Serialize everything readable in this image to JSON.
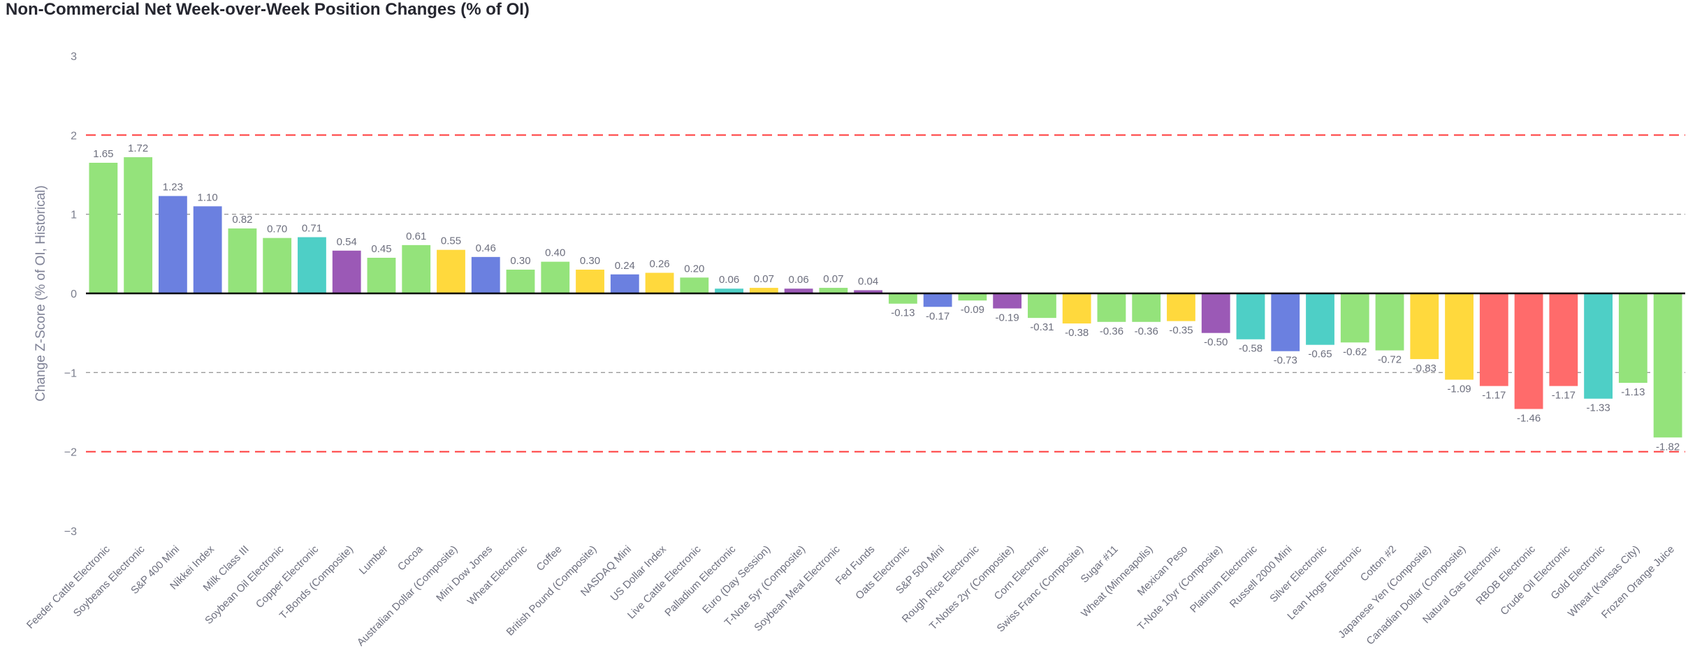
{
  "chart_data": {
    "type": "bar",
    "title": "Non-Commercial Net Week-over-Week Position Changes (% of OI)",
    "xlabel": "",
    "ylabel": "Change Z-Score (% of OI, Historical)",
    "ylim": [
      -3,
      3
    ],
    "yticks": [
      3,
      2,
      1,
      0,
      -1,
      -2,
      -3
    ],
    "reference_lines": [
      {
        "value": 2,
        "style": "dashed",
        "color": "#ff3b3b"
      },
      {
        "value": -2,
        "style": "dashed",
        "color": "#ff3b3b"
      },
      {
        "value": 1,
        "style": "dashed",
        "color": "#9a9a9a"
      },
      {
        "value": -1,
        "style": "dashed",
        "color": "#9a9a9a"
      },
      {
        "value": 0,
        "style": "solid",
        "color": "#000000"
      }
    ],
    "colors": {
      "agriculture": "#94e37b",
      "equity_index": "#6b80e0",
      "metals": "#4ecfc6",
      "interest_rates": "#9b59b6",
      "currencies": "#ffd93d",
      "energy": "#ff6b6b"
    },
    "bars": [
      {
        "label": "Feeder Cattle Electronic",
        "value": 1.65,
        "text": "1.65",
        "group": "agriculture"
      },
      {
        "label": "Soybeans Electronic",
        "value": 1.72,
        "text": "1.72",
        "group": "agriculture"
      },
      {
        "label": "S&P 400 Mini",
        "value": 1.23,
        "text": "1.23",
        "group": "equity_index"
      },
      {
        "label": "Nikkei Index",
        "value": 1.1,
        "text": "1.10",
        "group": "equity_index"
      },
      {
        "label": "Milk Class III",
        "value": 0.82,
        "text": "0.82",
        "group": "agriculture"
      },
      {
        "label": "Soybean Oil Electronic",
        "value": 0.7,
        "text": "0.70",
        "group": "agriculture"
      },
      {
        "label": "Copper Electronic",
        "value": 0.71,
        "text": "0.71",
        "group": "metals"
      },
      {
        "label": "T-Bonds (Composite)",
        "value": 0.54,
        "text": "0.54",
        "group": "interest_rates"
      },
      {
        "label": "Lumber",
        "value": 0.45,
        "text": "0.45",
        "group": "agriculture"
      },
      {
        "label": "Cocoa",
        "value": 0.61,
        "text": "0.61",
        "group": "agriculture"
      },
      {
        "label": "Australian Dollar (Composite)",
        "value": 0.55,
        "text": "0.55",
        "group": "currencies"
      },
      {
        "label": "Mini Dow Jones",
        "value": 0.46,
        "text": "0.46",
        "group": "equity_index"
      },
      {
        "label": "Wheat Electronic",
        "value": 0.3,
        "text": "0.30",
        "group": "agriculture"
      },
      {
        "label": "Coffee",
        "value": 0.4,
        "text": "0.40",
        "group": "agriculture"
      },
      {
        "label": "British Pound (Composite)",
        "value": 0.3,
        "text": "0.30",
        "group": "currencies"
      },
      {
        "label": "NASDAQ Mini",
        "value": 0.24,
        "text": "0.24",
        "group": "equity_index"
      },
      {
        "label": "US Dollar Index",
        "value": 0.26,
        "text": "0.26",
        "group": "currencies"
      },
      {
        "label": "Live Cattle Electronic",
        "value": 0.2,
        "text": "0.20",
        "group": "agriculture"
      },
      {
        "label": "Palladium Electronic",
        "value": 0.06,
        "text": "0.06",
        "group": "metals"
      },
      {
        "label": "Euro (Day Session)",
        "value": 0.07,
        "text": "0.07",
        "group": "currencies"
      },
      {
        "label": "T-Note 5yr (Composite)",
        "value": 0.06,
        "text": "0.06",
        "group": "interest_rates"
      },
      {
        "label": "Soybean Meal Electronic",
        "value": 0.07,
        "text": "0.07",
        "group": "agriculture"
      },
      {
        "label": "Fed Funds",
        "value": 0.04,
        "text": "0.04",
        "group": "interest_rates"
      },
      {
        "label": "Oats Electronic",
        "value": -0.13,
        "text": "-0.13",
        "group": "agriculture"
      },
      {
        "label": "S&P 500 Mini",
        "value": -0.17,
        "text": "-0.17",
        "group": "equity_index"
      },
      {
        "label": "Rough Rice Electronic",
        "value": -0.09,
        "text": "-0.09",
        "group": "agriculture"
      },
      {
        "label": "T-Notes 2yr (Composite)",
        "value": -0.19,
        "text": "-0.19",
        "group": "interest_rates"
      },
      {
        "label": "Corn Electronic",
        "value": -0.31,
        "text": "-0.31",
        "group": "agriculture"
      },
      {
        "label": "Swiss Franc (Composite)",
        "value": -0.38,
        "text": "-0.38",
        "group": "currencies"
      },
      {
        "label": "Sugar #11",
        "value": -0.36,
        "text": "-0.36",
        "group": "agriculture"
      },
      {
        "label": "Wheat (Minneapolis)",
        "value": -0.36,
        "text": "-0.36",
        "group": "agriculture"
      },
      {
        "label": "Mexican Peso",
        "value": -0.35,
        "text": "-0.35",
        "group": "currencies"
      },
      {
        "label": "T-Note 10yr (Composite)",
        "value": -0.5,
        "text": "-0.50",
        "group": "interest_rates"
      },
      {
        "label": "Platinum Electronic",
        "value": -0.58,
        "text": "-0.58",
        "group": "metals"
      },
      {
        "label": "Russell 2000 Mini",
        "value": -0.73,
        "text": "-0.73",
        "group": "equity_index"
      },
      {
        "label": "Silver Electronic",
        "value": -0.65,
        "text": "-0.65",
        "group": "metals"
      },
      {
        "label": "Lean Hogs Electronic",
        "value": -0.62,
        "text": "-0.62",
        "group": "agriculture"
      },
      {
        "label": "Cotton #2",
        "value": -0.72,
        "text": "-0.72",
        "group": "agriculture"
      },
      {
        "label": "Japanese Yen (Composite)",
        "value": -0.83,
        "text": "-0.83",
        "group": "currencies"
      },
      {
        "label": "Canadian Dollar (Composite)",
        "value": -1.09,
        "text": "-1.09",
        "group": "currencies"
      },
      {
        "label": "Natural Gas Electronic",
        "value": -1.17,
        "text": "-1.17",
        "group": "energy"
      },
      {
        "label": "RBOB Electronic",
        "value": -1.46,
        "text": "-1.46",
        "group": "energy"
      },
      {
        "label": "Crude Oil Electronic",
        "value": -1.17,
        "text": "-1.17",
        "group": "energy"
      },
      {
        "label": "Gold Electronic",
        "value": -1.33,
        "text": "-1.33",
        "group": "metals"
      },
      {
        "label": "Wheat (Kansas City)",
        "value": -1.13,
        "text": "-1.13",
        "group": "agriculture"
      },
      {
        "label": "Frozen Orange Juice",
        "value": -1.82,
        "text": "-1.82",
        "group": "agriculture"
      }
    ]
  }
}
